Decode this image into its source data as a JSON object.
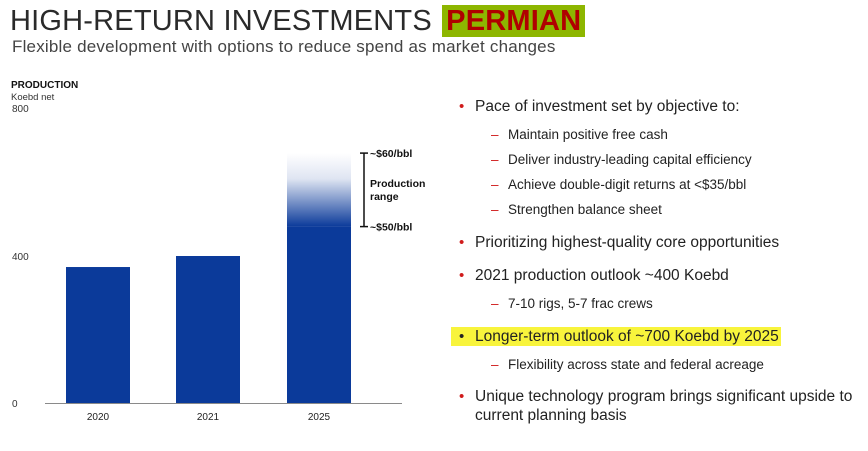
{
  "header": {
    "title_main": "HIGH-RETURN INVESTMENTS",
    "title_highlight": "PERMIAN",
    "subtitle": "Flexible development with options to reduce spend as market changes"
  },
  "chart_data": {
    "type": "bar",
    "title": "PRODUCTION",
    "ylabel": "Koebd net",
    "categories": [
      "2020",
      "2021",
      "2025"
    ],
    "values": [
      370,
      400,
      680
    ],
    "ylim": [
      0,
      800
    ],
    "yticks": [
      "0",
      "400",
      "800"
    ],
    "range": {
      "category": "2025",
      "low": 480,
      "high": 680,
      "low_label": "~$50/bbl",
      "high_label": "~$60/bbl",
      "label_line1": "Production",
      "label_line2": "range"
    },
    "colors": {
      "bar": "#0b3a9a",
      "range_top": "#ffffff",
      "axis": "#8a8a8a",
      "bracket": "#111111"
    }
  },
  "bullets": [
    {
      "level": 1,
      "text": "Pace of investment set by objective to:",
      "highlight": false
    },
    {
      "level": 2,
      "text": "Maintain positive free cash",
      "highlight": false
    },
    {
      "level": 2,
      "text": "Deliver industry-leading capital efficiency",
      "highlight": false
    },
    {
      "level": 2,
      "text": "Achieve double-digit returns at <$35/bbl",
      "highlight": false
    },
    {
      "level": 2,
      "text": "Strengthen balance sheet",
      "highlight": false
    },
    {
      "level": 1,
      "text": "Prioritizing highest-quality core opportunities",
      "highlight": false
    },
    {
      "level": 1,
      "text": "2021 production outlook ~400 Koebd",
      "highlight": false
    },
    {
      "level": 2,
      "text": "7-10 rigs, 5-7 frac crews",
      "highlight": false
    },
    {
      "level": 1,
      "text": "Longer-term outlook of ~700 Koebd by 2025",
      "highlight": true
    },
    {
      "level": 2,
      "text": "Flexibility across state and federal acreage",
      "highlight": false
    },
    {
      "level": 1,
      "text": "Unique technology program brings significant upside to current planning basis",
      "highlight": false
    }
  ]
}
